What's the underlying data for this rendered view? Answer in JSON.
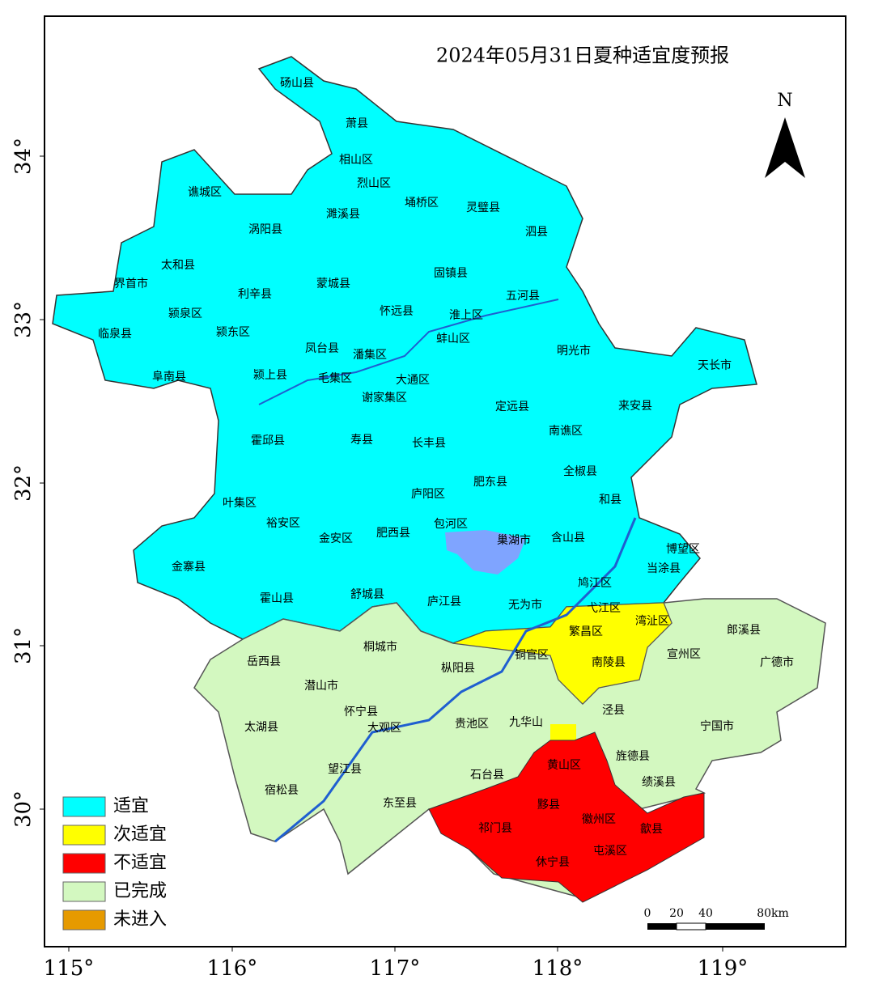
{
  "title": "2024年05月31日夏种适宜度预报",
  "north": "N",
  "x_labels": [
    "115°",
    "116°",
    "117°",
    "118°",
    "119°"
  ],
  "y_labels": [
    "30°",
    "31°",
    "32°",
    "33°",
    "34°"
  ],
  "legend": [
    {
      "label": "适宜",
      "color": "#00ffff"
    },
    {
      "label": "次适宜",
      "color": "#ffff00"
    },
    {
      "label": "不适宜",
      "color": "#ff0000"
    },
    {
      "label": "已完成",
      "color": "#d3f8c0"
    },
    {
      "label": "未进入",
      "color": "#e69a00"
    }
  ],
  "scale_bar": [
    "0",
    "20",
    "40",
    "80km"
  ],
  "counties": [
    "砀山县",
    "萧县",
    "相山区",
    "烈山区",
    "谯城区",
    "濉溪县",
    "埇桥区",
    "灵璧县",
    "涡阳县",
    "泗县",
    "太和县",
    "固镇县",
    "界首市",
    "利辛县",
    "蒙城县",
    "五河县",
    "颍泉区",
    "怀远县",
    "淮上区",
    "临泉县",
    "颍东区",
    "蚌山区",
    "凤台县",
    "明光市",
    "潘集区",
    "天长市",
    "颍上县",
    "阜南县",
    "毛集区",
    "大通区",
    "谢家集区",
    "定远县",
    "来安县",
    "南谯区",
    "霍邱县",
    "寿县",
    "长丰县",
    "全椒县",
    "肥东县",
    "庐阳区",
    "叶集区",
    "裕安区",
    "和县",
    "包河区",
    "金安区",
    "肥西县",
    "巢湖市",
    "含山县",
    "博望区",
    "金寨县",
    "当涂县",
    "鸠江区",
    "霍山县",
    "舒城县",
    "庐江县",
    "无为市",
    "弋江区",
    "湾沚区",
    "繁昌区",
    "郎溪县",
    "岳西县",
    "桐城市",
    "铜官区",
    "宣州区",
    "枞阳县",
    "南陵县",
    "广德市",
    "潜山市",
    "怀宁县",
    "泾县",
    "太湖县",
    "大观区",
    "贵池区",
    "九华山",
    "宁国市",
    "旌德县",
    "黄山区",
    "望江县",
    "石台县",
    "绩溪县",
    "宿松县",
    "东至县",
    "黟县",
    "徽州区",
    "祁门县",
    "歙县",
    "屯溪区",
    "休宁县"
  ]
}
